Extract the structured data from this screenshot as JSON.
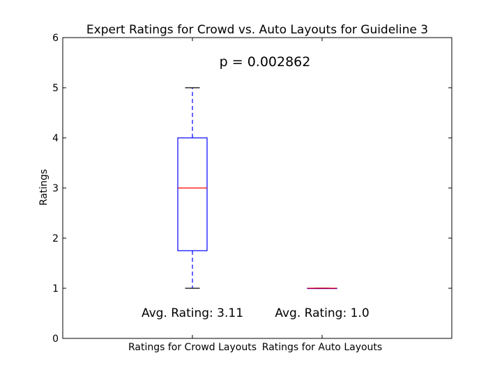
{
  "chart_data": {
    "type": "box",
    "title": "Expert Ratings for Crowd vs. Auto Layouts for Guideline 3",
    "ylabel": "Ratings",
    "xlabel": "",
    "ylim": [
      0,
      6
    ],
    "yticks": [
      0,
      1,
      2,
      3,
      4,
      5,
      6
    ],
    "grid": false,
    "categories": [
      "Ratings for Crowd Layouts",
      "Ratings for Auto Layouts"
    ],
    "boxes": [
      {
        "whisker_low": 1,
        "q1": 1.75,
        "median": 3,
        "q3": 4,
        "whisker_high": 5
      },
      {
        "whisker_low": 1,
        "q1": 1,
        "median": 1,
        "q3": 1,
        "whisker_high": 1
      }
    ],
    "annotations": {
      "p_value": "p = 0.002862",
      "avg_labels": [
        "Avg. Rating: 3.11",
        "Avg. Rating: 1.0"
      ]
    },
    "colors": {
      "box": "#0000ff",
      "median": "#ff0000",
      "cap": "#000000",
      "axes": "#000000"
    }
  }
}
